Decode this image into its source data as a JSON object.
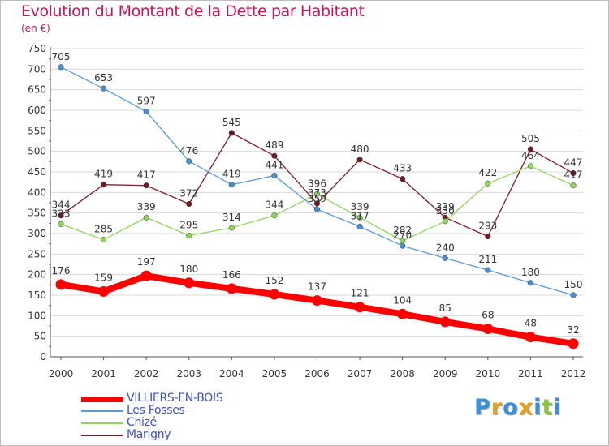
{
  "header": {
    "title": "Evolution du Montant de la Dette par Habitant",
    "subtitle": "(en €)"
  },
  "colors": {
    "title": "#c2185b",
    "grid": "#d8d8d8",
    "legend_text": "#3d4fc4"
  },
  "chart_data": {
    "type": "line",
    "title": "Evolution du Montant de la Dette par Habitant",
    "subtitle": "(en €)",
    "x": [
      "2000",
      "2001",
      "2002",
      "2003",
      "2004",
      "2005",
      "2006",
      "2007",
      "2008",
      "2009",
      "2010",
      "2011",
      "2012"
    ],
    "ylim": [
      0,
      750
    ],
    "yticks": [
      "0",
      "50",
      "100",
      "150",
      "200",
      "250",
      "300",
      "350",
      "400",
      "450",
      "500",
      "550",
      "600",
      "650",
      "700",
      "750"
    ],
    "grid": "horizontal",
    "legend_position": "bottom-left",
    "series": [
      {
        "name": "Marigny",
        "color": "#7a1f2b",
        "marker": "#6d1a24",
        "values": [
          344,
          419,
          417,
          372,
          545,
          489,
          373,
          480,
          433,
          339,
          293,
          505,
          447
        ],
        "labels": [
          "344",
          "419",
          "417",
          "372",
          "545",
          "489",
          "373",
          "480",
          "433",
          "339",
          "293",
          "505",
          "447"
        ]
      },
      {
        "name": "Chizé",
        "color": "#8fd65a",
        "marker": "#8fd65a",
        "values": [
          323,
          285,
          339,
          295,
          314,
          344,
          396,
          339,
          282,
          330,
          422,
          464,
          417
        ],
        "labels": [
          "323",
          "285",
          "339",
          "295",
          "314",
          "344",
          "396",
          "339",
          "282",
          "330",
          "422",
          "464",
          "417"
        ]
      },
      {
        "name": "Les Fosses",
        "color": "#5b9bd5",
        "marker": "#4a8fd0",
        "values": [
          705,
          653,
          597,
          476,
          419,
          441,
          359,
          317,
          270,
          240,
          211,
          180,
          150
        ],
        "labels": [
          "705",
          "653",
          "597",
          "476",
          "419",
          "441",
          "359",
          "317",
          "270",
          "240",
          "211",
          "180",
          "150"
        ]
      },
      {
        "name": "VILLIERS-EN-BOIS",
        "color": "#ff0000",
        "marker": "#ff0000",
        "values": [
          176,
          159,
          197,
          180,
          166,
          152,
          137,
          121,
          104,
          85,
          68,
          48,
          32
        ],
        "labels": [
          "176",
          "159",
          "197",
          "180",
          "166",
          "152",
          "137",
          "121",
          "104",
          "85",
          "68",
          "48",
          "32"
        ]
      }
    ]
  },
  "legend": {
    "items": [
      {
        "name": "VILLIERS-EN-BOIS",
        "color": "#ff0000"
      },
      {
        "name": "Les Fosses",
        "color": "#5b9bd5"
      },
      {
        "name": "Chizé",
        "color": "#8fd65a"
      },
      {
        "name": "Marigny",
        "color": "#7a1f2b"
      }
    ]
  },
  "logo": {
    "letters": [
      "P",
      "r",
      "o",
      "x",
      "i",
      "t",
      "i"
    ],
    "colors": [
      "#3a8fd8",
      "#e8a020",
      "#3a8fd8",
      "#e8a020",
      "#3a8fd8",
      "#8cc63f",
      "#3a8fd8"
    ]
  }
}
